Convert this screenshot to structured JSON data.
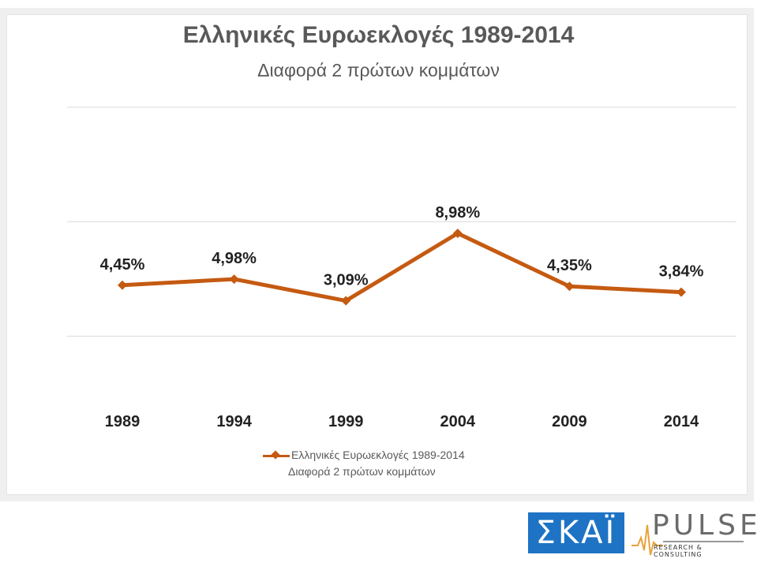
{
  "colors": {
    "line": "#c55a11",
    "grid": "#d9d9d9",
    "skai_bg": "#1e73c4",
    "pulse_text": "#6b6b6b",
    "pulse_accent": "#e8a33a"
  },
  "chart_data": {
    "type": "line",
    "title": "Ελληνικές Ευρωεκλογές 1989-2014",
    "subtitle": "Διαφορά 2 πρώτων κομμάτων",
    "categories": [
      "1989",
      "1994",
      "1999",
      "2004",
      "2009",
      "2014"
    ],
    "series": [
      {
        "name": "Ελληνικές Ευρωεκλογές 1989-2014",
        "name_line2": "Διαφορά 2 πρώτων κομμάτων",
        "values": [
          4.45,
          4.98,
          3.09,
          8.98,
          4.35,
          3.84
        ],
        "labels": [
          "4,45%",
          "4,98%",
          "3,09%",
          "8,98%",
          "4,35%",
          "3,84%"
        ]
      }
    ],
    "ylim": [
      -5,
      20
    ],
    "grid": true,
    "legend": "bottom"
  },
  "logos": {
    "skai": "ΣΚΑΪ",
    "pulse": "PULSE",
    "pulse_tagline": "RESEARCH & CONSULTING"
  }
}
